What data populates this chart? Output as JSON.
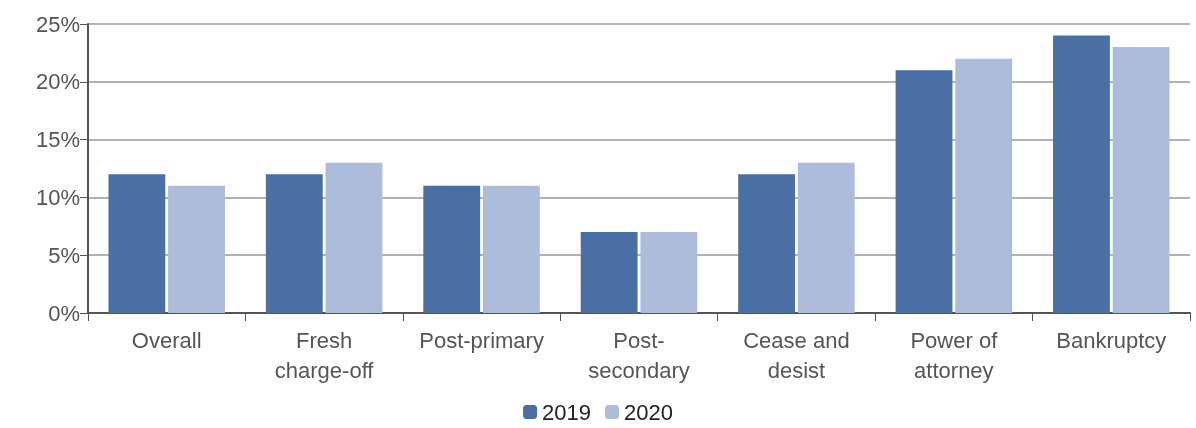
{
  "chart_data": {
    "type": "bar",
    "categories": [
      "Overall",
      "Fresh\ncharge-off",
      "Post-primary",
      "Post-\nsecondary",
      "Cease and\ndesist",
      "Power of\nattorney",
      "Bankruptcy"
    ],
    "series": [
      {
        "name": "2019",
        "color": "#4a6fa5",
        "values": [
          12,
          12,
          11,
          7,
          12,
          21,
          24
        ]
      },
      {
        "name": "2020",
        "color": "#adbcdb",
        "values": [
          11,
          13,
          11,
          7,
          13,
          22,
          23
        ]
      }
    ],
    "ylim": [
      0,
      25
    ],
    "yticks": [
      {
        "value": 0,
        "label": "0%"
      },
      {
        "value": 5,
        "label": "5%"
      },
      {
        "value": 10,
        "label": "10%"
      },
      {
        "value": 15,
        "label": "15%"
      },
      {
        "value": 20,
        "label": "20%"
      },
      {
        "value": 25,
        "label": "25%"
      }
    ],
    "grid": "y",
    "legend": "bottom"
  }
}
